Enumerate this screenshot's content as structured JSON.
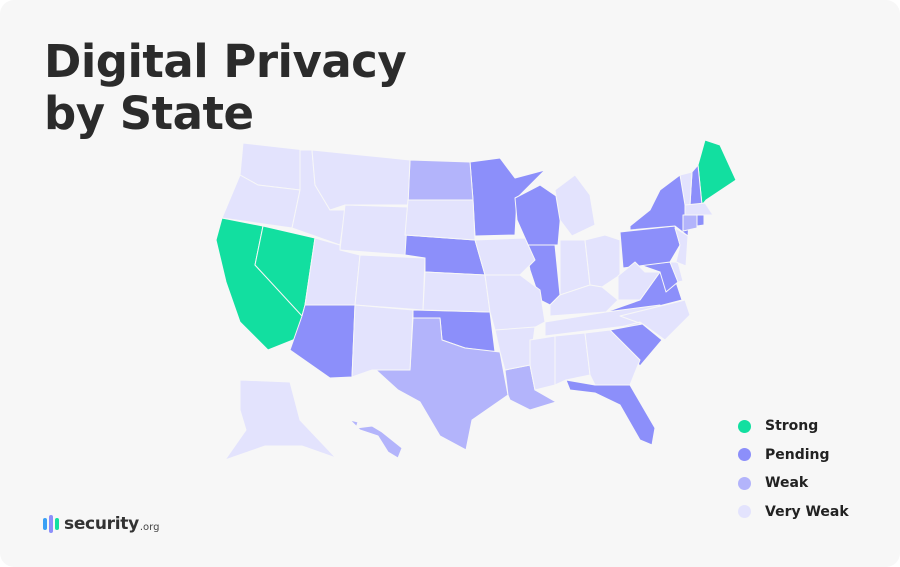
{
  "title": {
    "line1": "Digital Privacy",
    "line2": "by State"
  },
  "colors": {
    "strong": "#12dfa0",
    "pending": "#8c8ffa",
    "weak": "#b3b4fb",
    "very_weak": "#e3e3fd"
  },
  "legend": [
    {
      "key": "strong",
      "label": "Strong"
    },
    {
      "key": "pending",
      "label": "Pending"
    },
    {
      "key": "weak",
      "label": "Weak"
    },
    {
      "key": "very_weak",
      "label": "Very Weak"
    }
  ],
  "states": {
    "CA": "strong",
    "NV": "strong",
    "ME": "strong",
    "AZ": "pending",
    "NE": "pending",
    "MN": "pending",
    "WI": "pending",
    "IL": "pending",
    "OK": "pending",
    "SC": "pending",
    "FL": "pending",
    "VA": "pending",
    "MD": "pending",
    "PA": "pending",
    "NY": "pending",
    "NH": "pending",
    "RI": "pending",
    "ND": "weak",
    "TX": "weak",
    "LA": "weak",
    "HI": "weak",
    "CT": "weak",
    "WA": "very_weak",
    "OR": "very_weak",
    "ID": "very_weak",
    "MT": "very_weak",
    "WY": "very_weak",
    "UT": "very_weak",
    "CO": "very_weak",
    "NM": "very_weak",
    "SD": "very_weak",
    "KS": "very_weak",
    "IA": "very_weak",
    "MO": "very_weak",
    "AR": "very_weak",
    "MI": "very_weak",
    "IN": "very_weak",
    "OH": "very_weak",
    "KY": "very_weak",
    "TN": "very_weak",
    "MS": "very_weak",
    "AL": "very_weak",
    "GA": "very_weak",
    "NC": "very_weak",
    "WV": "very_weak",
    "DE": "very_weak",
    "NJ": "very_weak",
    "VT": "very_weak",
    "MA": "very_weak",
    "AK": "very_weak"
  },
  "logo": {
    "name": "security",
    "tld": ".org"
  }
}
